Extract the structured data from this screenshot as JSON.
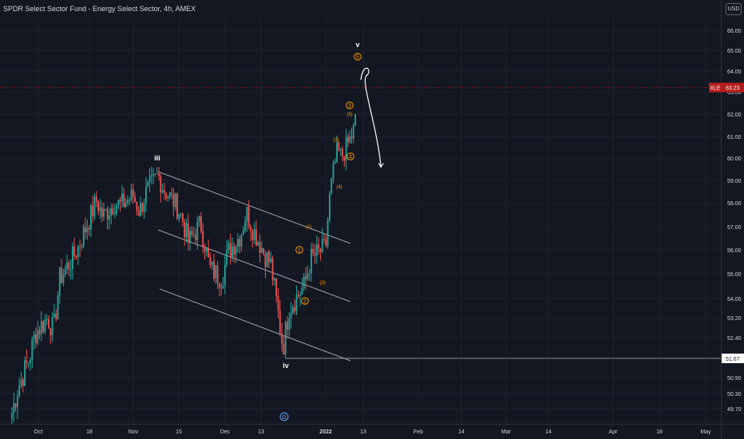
{
  "header": {
    "title": "SPDR Select Sector Fund - Energy Select Sector, 4h, AMEX",
    "currency_button": "USD"
  },
  "colors": {
    "background": "#131722",
    "grid": "#1e222d",
    "up": "#26a69a",
    "down": "#ef5350",
    "text": "#d1d4dc",
    "wave_label": "#ff9800",
    "price_badge": "#b71c1c",
    "channel": "#b2b5be"
  },
  "chart_data": {
    "type": "candlestick",
    "y_axis": {
      "ticks": [
        "66.00",
        "65.00",
        "64.00",
        "63.00",
        "62.00",
        "61.00",
        "60.00",
        "59.00",
        "58.00",
        "57.00",
        "56.00",
        "55.00",
        "54.00",
        "53.20",
        "52.40",
        "51.60",
        "50.90",
        "50.30",
        "49.70"
      ],
      "scale": "log"
    },
    "x_axis": {
      "ticks": [
        "Oct",
        "18",
        "Nov",
        "15",
        "Dec",
        "13",
        "2022",
        "13",
        "Feb",
        "14",
        "Mar",
        "14",
        "Apr",
        "18",
        "May"
      ]
    },
    "last_price": {
      "symbol": "XLE",
      "value": "63.23"
    },
    "level_line": {
      "value": "51.67"
    },
    "wave_labels": {
      "iii": "iii",
      "iv": "iv",
      "v": "v",
      "circle_1": "1",
      "circle_2": "2",
      "circle_3": "3",
      "circle_4": "4",
      "circle_5": "5",
      "paren_1": "(1)",
      "paren_2": "(2)",
      "paren_3": "(3)",
      "paren_4": "(4)",
      "paren_5": "(5)"
    },
    "dividend_marker": "D",
    "price_path": [
      [
        "2021-09-22",
        49.4
      ],
      [
        "2021-09-24",
        50.4
      ],
      [
        "2021-09-28",
        51.6
      ],
      [
        "2021-09-30",
        52.6
      ],
      [
        "2021-10-04",
        53.2
      ],
      [
        "2021-10-06",
        52.7
      ],
      [
        "2021-10-08",
        54.8
      ],
      [
        "2021-10-12",
        55.6
      ],
      [
        "2021-10-14",
        56.1
      ],
      [
        "2021-10-18",
        57.4
      ],
      [
        "2021-10-20",
        58.1
      ],
      [
        "2021-10-22",
        57.4
      ],
      [
        "2021-10-26",
        58.0
      ],
      [
        "2021-10-28",
        57.9
      ],
      [
        "2021-11-01",
        58.3
      ],
      [
        "2021-11-03",
        57.6
      ],
      [
        "2021-11-05",
        58.4
      ],
      [
        "2021-11-09",
        59.2
      ],
      [
        "2021-11-11",
        58.6
      ],
      [
        "2021-11-15",
        57.9
      ],
      [
        "2021-11-17",
        57.3
      ],
      [
        "2021-11-19",
        56.3
      ],
      [
        "2021-11-23",
        57.1
      ],
      [
        "2021-11-26",
        55.2
      ],
      [
        "2021-11-30",
        54.8
      ],
      [
        "2021-12-02",
        55.9
      ],
      [
        "2021-12-06",
        56.6
      ],
      [
        "2021-12-08",
        57.6
      ],
      [
        "2021-12-10",
        56.9
      ],
      [
        "2021-12-14",
        55.8
      ],
      [
        "2021-12-16",
        55.4
      ],
      [
        "2021-12-20",
        52.0
      ],
      [
        "2021-12-22",
        53.6
      ],
      [
        "2021-12-27",
        54.5
      ],
      [
        "2021-12-29",
        55.6
      ],
      [
        "2022-01-03",
        56.1
      ],
      [
        "2022-01-04",
        58.2
      ],
      [
        "2022-01-05",
        59.4
      ],
      [
        "2022-01-06",
        60.3
      ],
      [
        "2022-01-07",
        60.0
      ],
      [
        "2022-01-10",
        61.1
      ],
      [
        "2022-01-11",
        62.1
      ],
      [
        "2022-01-12",
        63.23
      ]
    ],
    "projection": [
      [
        "2022-01-13",
        64.1
      ],
      [
        "2022-01-14",
        63.8
      ],
      [
        "2022-01-17",
        61.5
      ],
      [
        "2022-01-19",
        59.6
      ]
    ]
  }
}
